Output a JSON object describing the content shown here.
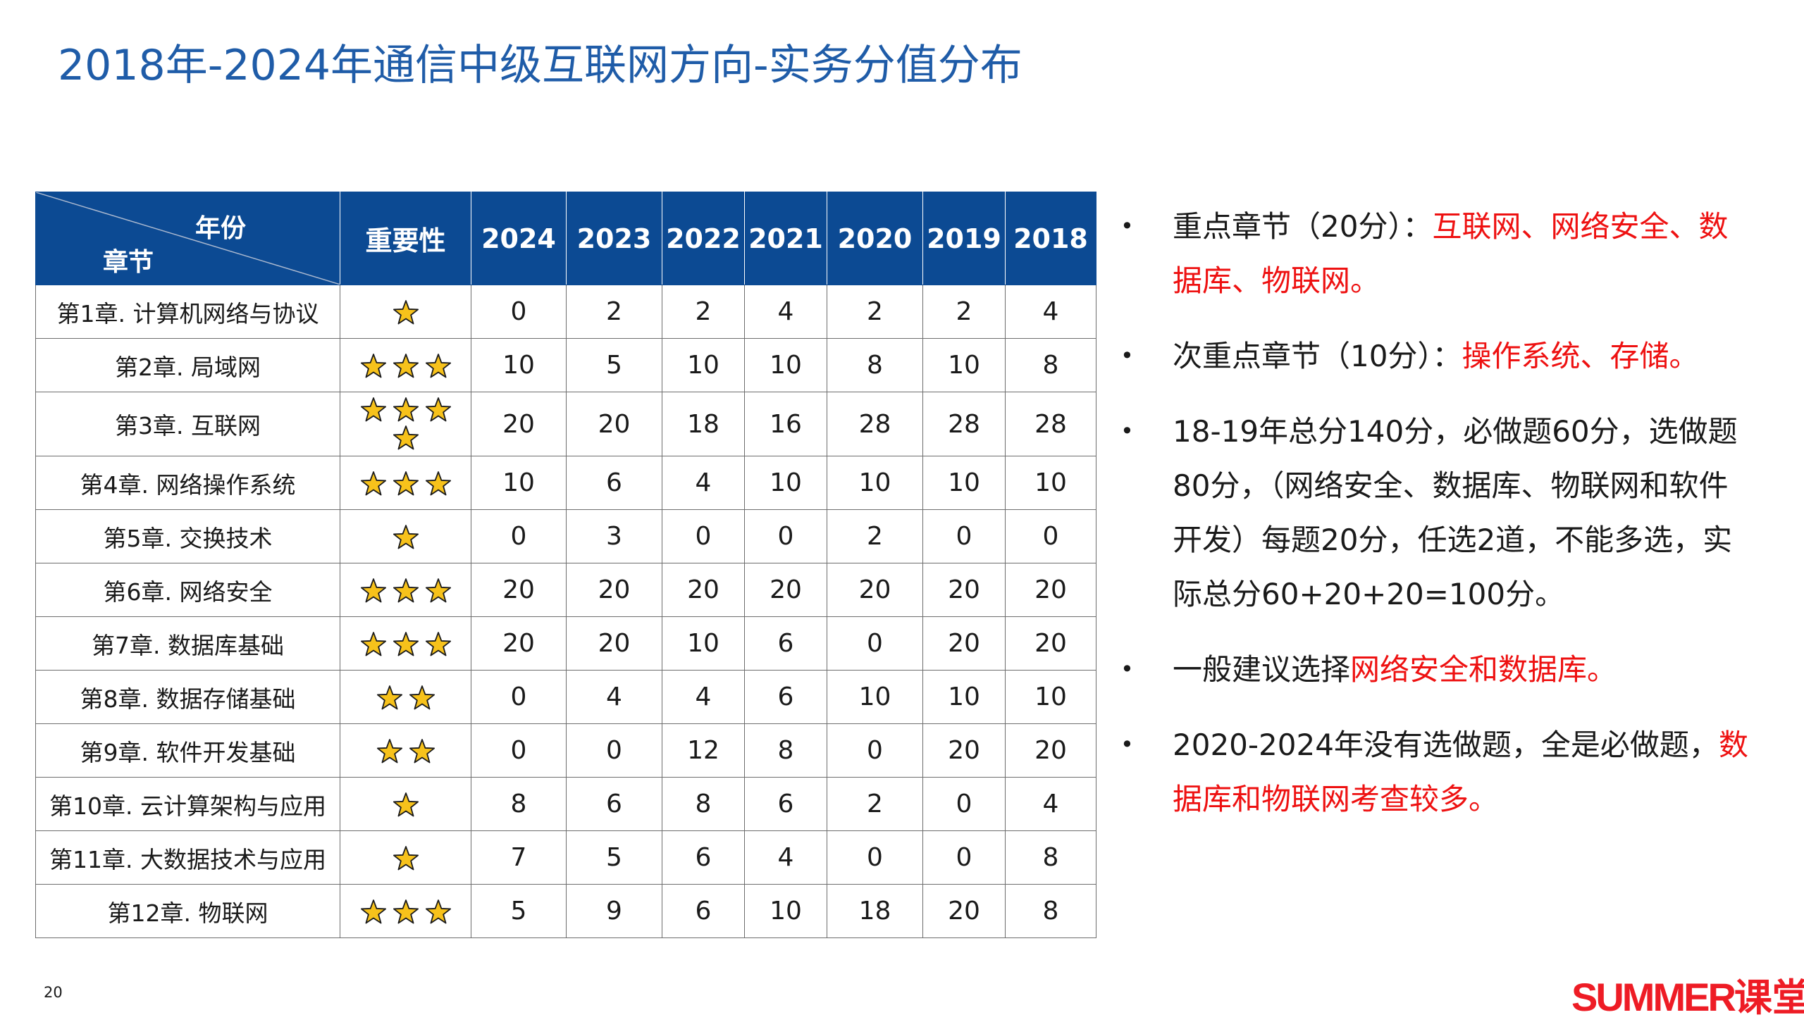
{
  "title": "2018年-2024年通信中级互联网方向-实务分值分布",
  "table": {
    "corner_top": "年份",
    "corner_bottom": "章节",
    "importance_header": "重要性",
    "years": [
      "2024",
      "2023",
      "2022",
      "2021",
      "2020",
      "2019",
      "2018"
    ],
    "rows": [
      {
        "chapter": "第1章. 计算机网络与协议",
        "stars": 1,
        "scores": [
          "0",
          "2",
          "2",
          "4",
          "2",
          "2",
          "4"
        ]
      },
      {
        "chapter": "第2章. 局域网",
        "stars": 3,
        "scores": [
          "10",
          "5",
          "10",
          "10",
          "8",
          "10",
          "8"
        ]
      },
      {
        "chapter": "第3章. 互联网",
        "stars": 4,
        "scores": [
          "20",
          "20",
          "18",
          "16",
          "28",
          "28",
          "28"
        ]
      },
      {
        "chapter": "第4章. 网络操作系统",
        "stars": 3,
        "scores": [
          "10",
          "6",
          "4",
          "10",
          "10",
          "10",
          "10"
        ]
      },
      {
        "chapter": "第5章. 交换技术",
        "stars": 1,
        "scores": [
          "0",
          "3",
          "0",
          "0",
          "2",
          "0",
          "0"
        ]
      },
      {
        "chapter": "第6章. 网络安全",
        "stars": 3,
        "scores": [
          "20",
          "20",
          "20",
          "20",
          "20",
          "20",
          "20"
        ]
      },
      {
        "chapter": "第7章. 数据库基础",
        "stars": 3,
        "scores": [
          "20",
          "20",
          "10",
          "6",
          "0",
          "20",
          "20"
        ]
      },
      {
        "chapter": "第8章. 数据存储基础",
        "stars": 2,
        "scores": [
          "0",
          "4",
          "4",
          "6",
          "10",
          "10",
          "10"
        ]
      },
      {
        "chapter": "第9章. 软件开发基础",
        "stars": 2,
        "scores": [
          "0",
          "0",
          "12",
          "8",
          "0",
          "20",
          "20"
        ]
      },
      {
        "chapter": "第10章. 云计算架构与应用",
        "stars": 1,
        "scores": [
          "8",
          "6",
          "8",
          "6",
          "2",
          "0",
          "4"
        ]
      },
      {
        "chapter": "第11章. 大数据技术与应用",
        "stars": 1,
        "scores": [
          "7",
          "5",
          "6",
          "4",
          "0",
          "0",
          "8"
        ]
      },
      {
        "chapter": "第12章. 物联网",
        "stars": 3,
        "scores": [
          "5",
          "9",
          "6",
          "10",
          "18",
          "20",
          "8"
        ]
      }
    ]
  },
  "notes": [
    {
      "parts": [
        {
          "text": "重点章节（20分）：",
          "red": false
        },
        {
          "text": "互联网、网络安全、数据库、物联网。",
          "red": true
        }
      ]
    },
    {
      "parts": [
        {
          "text": "次重点章节（10分）：",
          "red": false
        },
        {
          "text": "操作系统、存储。",
          "red": true
        }
      ]
    },
    {
      "parts": [
        {
          "text": "18-19年总分140分，必做题60分，选做题80分，（网络安全、数据库、物联网和软件开发）每题20分，任选2道，不能多选，实际总分60+20+20=100分。",
          "red": false
        }
      ]
    },
    {
      "parts": [
        {
          "text": "一般建议选择",
          "red": false
        },
        {
          "text": "网络安全和数据库。",
          "red": true
        }
      ]
    },
    {
      "parts": [
        {
          "text": "2020-2024年没有选做题，全是必做题，",
          "red": false
        },
        {
          "text": "数据库和物联网考查较多。",
          "red": true
        }
      ]
    }
  ],
  "bullet_glyph": "•",
  "page_number": "20",
  "logo": {
    "latin": "SUMMER",
    "chinese": "课堂"
  },
  "colors": {
    "header_blue": "#0c4a93",
    "title_blue": "#1f5ca8",
    "highlight_red": "#ee1111",
    "star_fill": "#f7c21b",
    "star_stroke": "#1a1a1a"
  }
}
